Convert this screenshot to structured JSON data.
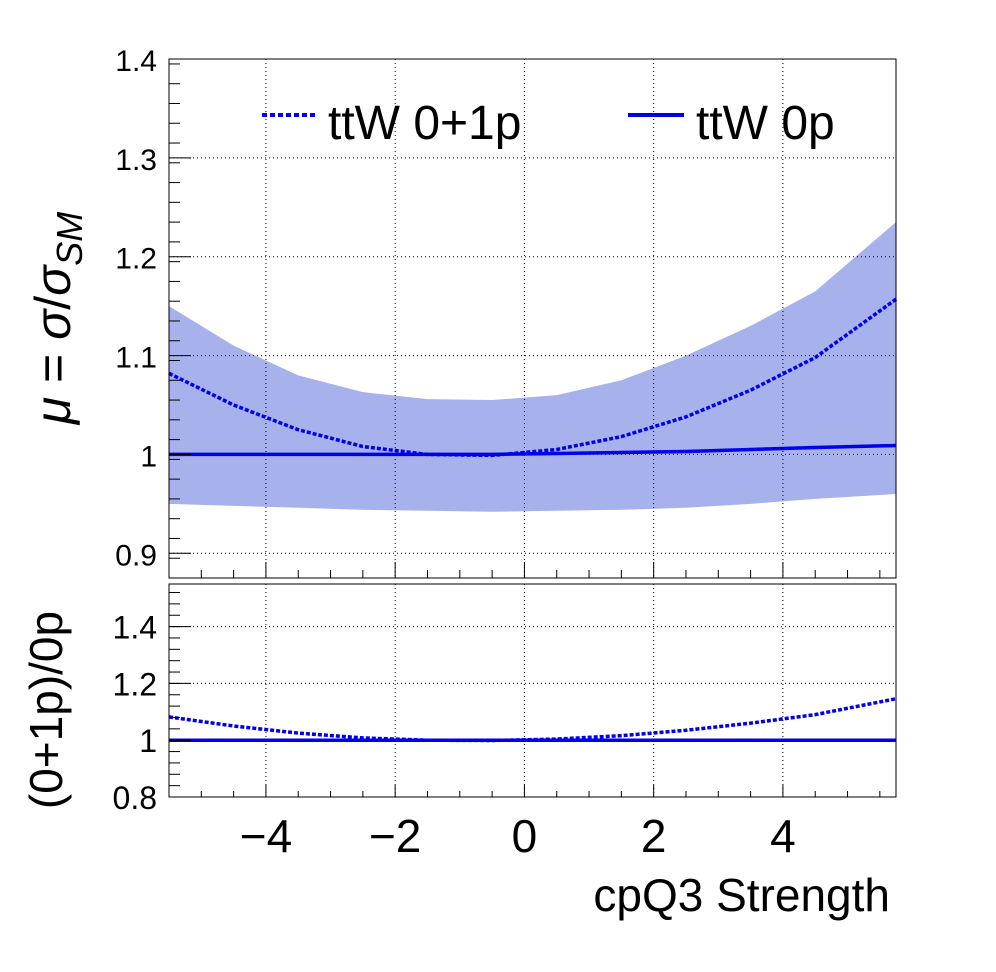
{
  "legend": {
    "placement": "top",
    "entries": [
      {
        "label": "ttW 0+1p",
        "style": "dashed",
        "color": "#0000ee"
      },
      {
        "label": "ttW 0p",
        "style": "solid",
        "color": "#0000ee"
      }
    ]
  },
  "colors": {
    "line": "#0000ee",
    "band": "#8a97e6",
    "grid": "#000000"
  },
  "chart_data": [
    {
      "type": "line",
      "panel": "top",
      "ylabel": "μ = σ/σ_SM",
      "ylim": [
        0.875,
        1.4
      ],
      "xlim": [
        -5.5,
        5.75
      ],
      "grid": true,
      "yticks": [
        0.9,
        1,
        1.1,
        1.2,
        1.3,
        1.4
      ],
      "ytick_labels": [
        "0.9",
        "1",
        "1.1",
        "1.2",
        "1.3",
        "1.4"
      ],
      "x": [
        -5.5,
        -4.5,
        -3.5,
        -2.5,
        -1.5,
        -0.5,
        0.5,
        1.5,
        2.5,
        3.5,
        4.5,
        5.75
      ],
      "series": [
        {
          "name": "ttW 0+1p",
          "style": "dashed",
          "values": [
            1.082,
            1.05,
            1.025,
            1.008,
            1.0,
            0.999,
            1.005,
            1.018,
            1.038,
            1.065,
            1.098,
            1.157
          ]
        },
        {
          "name": "ttW 0p",
          "style": "solid",
          "values": [
            1.0,
            1.0,
            1.0,
            1.0,
            1.0,
            1.0,
            1.001,
            1.002,
            1.003,
            1.005,
            1.007,
            1.009
          ]
        }
      ],
      "band": {
        "upper": [
          1.15,
          1.11,
          1.08,
          1.063,
          1.056,
          1.055,
          1.06,
          1.075,
          1.1,
          1.13,
          1.165,
          1.235
        ],
        "lower": [
          0.95,
          0.948,
          0.946,
          0.944,
          0.943,
          0.942,
          0.943,
          0.944,
          0.946,
          0.95,
          0.955,
          0.96
        ]
      }
    },
    {
      "type": "line",
      "panel": "bottom",
      "ylabel": "(0+1p)/0p",
      "xlabel": "cpQ3 Strength",
      "ylim": [
        0.8,
        1.55
      ],
      "xlim": [
        -5.5,
        5.75
      ],
      "grid": true,
      "xticks": [
        -4,
        -2,
        0,
        2,
        4
      ],
      "xtick_labels": [
        "−4",
        "−2",
        "0",
        "2",
        "4"
      ],
      "yticks": [
        0.8,
        1,
        1.2,
        1.4
      ],
      "ytick_labels": [
        "0.8",
        "1",
        "1.2",
        "1.4"
      ],
      "x": [
        -5.5,
        -4.5,
        -3.5,
        -2.5,
        -1.5,
        -0.5,
        0.5,
        1.5,
        2.5,
        3.5,
        4.5,
        5.75
      ],
      "series": [
        {
          "name": "ttW 0+1p",
          "style": "dashed",
          "values": [
            1.082,
            1.05,
            1.025,
            1.008,
            1.0,
            0.999,
            1.004,
            1.016,
            1.035,
            1.06,
            1.09,
            1.146
          ]
        },
        {
          "name": "ttW 0p",
          "style": "solid",
          "values": [
            1.0,
            1.0,
            1.0,
            1.0,
            1.0,
            1.0,
            1.0,
            1.0,
            1.0,
            1.0,
            1.0,
            1.0
          ]
        }
      ]
    }
  ]
}
